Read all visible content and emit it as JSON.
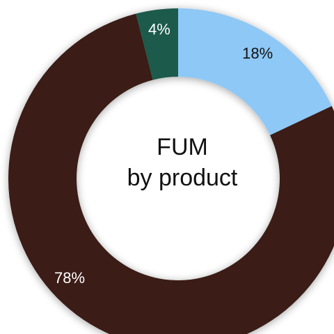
{
  "chart_data": {
    "type": "pie",
    "style": "donut",
    "center_title": [
      "FUM",
      "by product"
    ],
    "slices": [
      {
        "label": "18%",
        "value": 18,
        "color": "#8ec8f6",
        "label_color": "#111111"
      },
      {
        "label": "78%",
        "value": 78,
        "color": "#3a1f15",
        "label_color": "#ffffff"
      },
      {
        "label": "4%",
        "value": 4,
        "color": "#1f5a4c",
        "label_color": "#ffffff"
      }
    ],
    "start": "top",
    "direction": "clockwise"
  }
}
